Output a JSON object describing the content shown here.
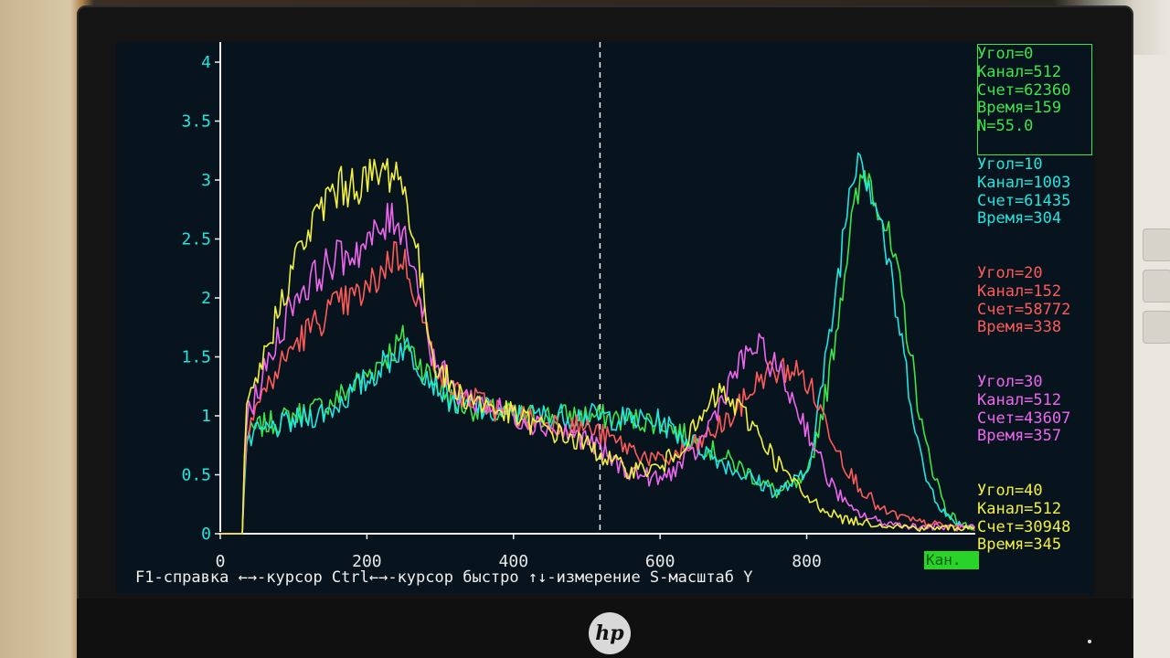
{
  "chart_data": {
    "type": "line",
    "title": "",
    "xlabel": "Кан.",
    "ylabel": "",
    "xlim": [
      0,
      1030
    ],
    "ylim": [
      0,
      4
    ],
    "x_ticks": [
      0,
      200,
      400,
      600,
      800
    ],
    "y_ticks": [
      0,
      0.5,
      1,
      1.5,
      2,
      2.5,
      3,
      3.5,
      4
    ],
    "cursor_channel": 518,
    "grid": false,
    "series": [
      {
        "name": "Угол=0",
        "color": "#3ce64a",
        "x": [
          0,
          30,
          35,
          50,
          100,
          150,
          200,
          250,
          290,
          320,
          400,
          500,
          600,
          700,
          760,
          800,
          830,
          860,
          880,
          900,
          930,
          960,
          990,
          1010,
          1030
        ],
        "values": [
          0,
          0,
          0.8,
          0.9,
          1.0,
          1.1,
          1.35,
          1.65,
          1.3,
          1.1,
          1.0,
          1.0,
          0.95,
          0.6,
          0.35,
          0.45,
          1.3,
          2.6,
          3.1,
          2.8,
          2.0,
          0.8,
          0.2,
          0.08,
          0.05
        ]
      },
      {
        "name": "Угол=10",
        "color": "#1fe6e0",
        "x": [
          0,
          30,
          35,
          50,
          100,
          150,
          200,
          250,
          290,
          320,
          400,
          500,
          600,
          700,
          760,
          800,
          830,
          860,
          870,
          900,
          930,
          960,
          990,
          1010,
          1030
        ],
        "values": [
          0,
          0,
          0.75,
          0.85,
          0.95,
          1.05,
          1.3,
          1.6,
          1.3,
          1.1,
          1.0,
          1.0,
          0.95,
          0.55,
          0.35,
          0.5,
          1.6,
          3.0,
          3.3,
          2.7,
          1.6,
          0.5,
          0.15,
          0.08,
          0.05
        ]
      },
      {
        "name": "Угол=20",
        "color": "#ff5a5a",
        "x": [
          0,
          30,
          35,
          50,
          100,
          150,
          200,
          240,
          260,
          290,
          320,
          400,
          500,
          600,
          650,
          700,
          740,
          780,
          800,
          830,
          860,
          900,
          950,
          1000,
          1030
        ],
        "values": [
          0,
          0,
          0.9,
          1.1,
          1.6,
          1.9,
          2.05,
          2.4,
          2.2,
          1.5,
          1.2,
          1.0,
          0.9,
          0.6,
          0.75,
          1.0,
          1.35,
          1.4,
          1.3,
          0.9,
          0.5,
          0.2,
          0.1,
          0.06,
          0.05
        ]
      },
      {
        "name": "Угол=30",
        "color": "#ee66ee",
        "x": [
          0,
          30,
          35,
          50,
          100,
          150,
          200,
          240,
          260,
          290,
          320,
          400,
          500,
          550,
          600,
          650,
          700,
          730,
          760,
          800,
          830,
          860,
          900,
          950,
          1030
        ],
        "values": [
          0,
          0,
          0.95,
          1.2,
          2.0,
          2.3,
          2.45,
          2.7,
          2.4,
          1.5,
          1.2,
          1.0,
          0.8,
          0.55,
          0.45,
          0.7,
          1.35,
          1.6,
          1.4,
          0.9,
          0.45,
          0.2,
          0.1,
          0.06,
          0.05
        ]
      },
      {
        "name": "Угол=40",
        "color": "#f2f040",
        "x": [
          0,
          30,
          35,
          50,
          100,
          150,
          200,
          240,
          260,
          290,
          320,
          400,
          500,
          550,
          600,
          650,
          680,
          700,
          730,
          760,
          800,
          850,
          900,
          950,
          1030
        ],
        "values": [
          0,
          0,
          1.0,
          1.3,
          2.3,
          2.9,
          3.0,
          3.1,
          2.7,
          1.5,
          1.2,
          1.0,
          0.75,
          0.55,
          0.55,
          0.9,
          1.2,
          1.1,
          0.9,
          0.6,
          0.3,
          0.12,
          0.08,
          0.05,
          0.05
        ]
      }
    ]
  },
  "legend_panels": [
    {
      "color": "#3ce64a",
      "lines": [
        "Угол=0",
        "Канал=512",
        "Счет=62360",
        "Время=159",
        "N=55.0"
      ]
    },
    {
      "color": "#1fe6e0",
      "lines": [
        "Угол=10",
        "Канал=1003",
        "Счет=61435",
        "Время=304"
      ]
    },
    {
      "color": "#ff5a5a",
      "lines": [
        "Угол=20",
        "Канал=152",
        "Счет=58772",
        "Время=338"
      ]
    },
    {
      "color": "#ee66ee",
      "lines": [
        "Угол=30",
        "Канал=512",
        "Счет=43607",
        "Время=357"
      ]
    },
    {
      "color": "#f2f040",
      "lines": [
        "Угол=40",
        "Канал=512",
        "Счет=30948",
        "Время=345"
      ]
    }
  ],
  "help_line": "F1-справка ←→-курсор Ctrl←→-курсор быстро ↑↓-измерение S-масштаб Y",
  "brand": "hp"
}
